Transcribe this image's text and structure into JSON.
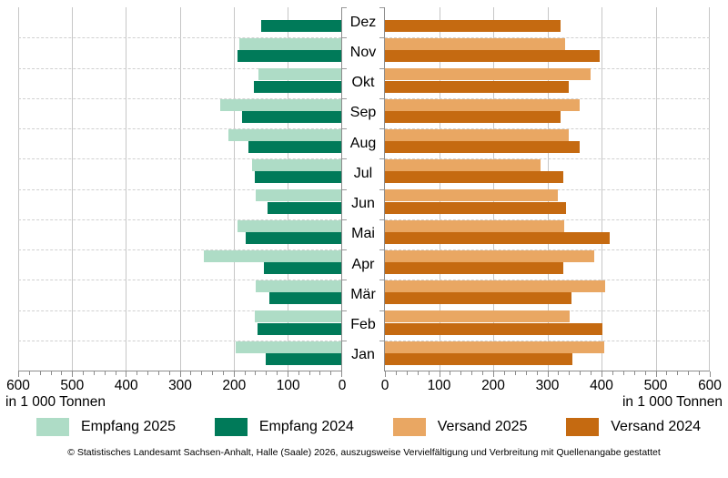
{
  "chart_data": {
    "type": "bar",
    "orientation": "horizontal-diverging",
    "months": [
      "Dez",
      "Nov",
      "Okt",
      "Sep",
      "Aug",
      "Jul",
      "Jun",
      "Mai",
      "Apr",
      "Mär",
      "Feb",
      "Jan"
    ],
    "axis": {
      "min": 0,
      "max": 600,
      "major_tick_step": 100,
      "minor_tick_step": 20,
      "tick_values": [
        0,
        100,
        200,
        300,
        400,
        500,
        600
      ],
      "unit_label_left": "in 1 000 Tonnen",
      "unit_label_right": "in 1 000 Tonnen",
      "grid": "vertical-solid, month-boundaries-dashed"
    },
    "series": [
      {
        "name": "Empfang 2025",
        "side": "left",
        "color": "#aedcc6",
        "values": [
          null,
          190,
          154,
          225,
          210,
          165,
          159,
          193,
          255,
          159,
          160,
          196
        ]
      },
      {
        "name": "Empfang 2024",
        "side": "left",
        "color": "#007a59",
        "values": [
          148,
          193,
          163,
          184,
          173,
          161,
          137,
          178,
          144,
          134,
          156,
          141
        ]
      },
      {
        "name": "Versand 2025",
        "side": "right",
        "color": "#e9a763",
        "values": [
          null,
          333,
          379,
          359,
          340,
          288,
          320,
          331,
          386,
          407,
          342,
          405
        ]
      },
      {
        "name": "Versand 2024",
        "side": "right",
        "color": "#c56a11",
        "values": [
          325,
          396,
          339,
          325,
          359,
          330,
          334,
          415,
          330,
          345,
          402,
          346
        ]
      }
    ],
    "legend_position": "bottom"
  },
  "legend": {
    "items": [
      {
        "label": "Empfang 2025",
        "color": "#aedcc6"
      },
      {
        "label": "Empfang 2024",
        "color": "#007a59"
      },
      {
        "label": "Versand 2025",
        "color": "#e9a763"
      },
      {
        "label": "Versand 2024",
        "color": "#c56a11"
      }
    ]
  },
  "footer": "© Statistisches Landesamt Sachsen-Anhalt, Halle (Saale) 2026, auszugsweise Vervielfältigung und Verbreitung mit Quellenangabe gestattet"
}
